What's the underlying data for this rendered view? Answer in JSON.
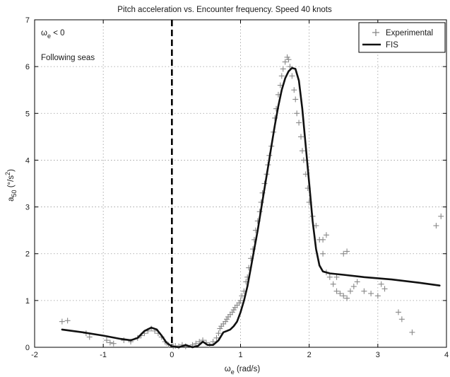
{
  "chart_data": {
    "type": "scatter",
    "title": "Pitch acceleration vs. Encounter frequency. Speed 40 knots",
    "xlabel": {
      "main": "ω",
      "sub": "e",
      "rest": " (rad/s)"
    },
    "ylabel": {
      "main": "a",
      "sub": "50",
      "rest": " (°/s",
      "sup": "2",
      "close": ")"
    },
    "xlim": [
      -2,
      4
    ],
    "ylim": [
      0,
      7
    ],
    "xticks": [
      "-2",
      "-1",
      "0",
      "1",
      "2",
      "3",
      "4"
    ],
    "yticks": [
      "0",
      "1",
      "2",
      "3",
      "4",
      "5",
      "6",
      "7"
    ],
    "grid": true,
    "legend_position": "top-right",
    "annotations": {
      "condition": {
        "main": "ω",
        "sub": "e",
        "rest": " < 0"
      },
      "label": "Following seas"
    },
    "vertical_line": {
      "x": 0,
      "style": "dashed"
    },
    "colors": {
      "experimental": "#888888",
      "fis": "#111111",
      "grid": "#9a9a9a"
    },
    "series": [
      {
        "name": "Experimental",
        "marker": "+",
        "points": [
          [
            -1.6,
            0.55
          ],
          [
            -1.52,
            0.57
          ],
          [
            -1.25,
            0.3
          ],
          [
            -1.2,
            0.22
          ],
          [
            -0.95,
            0.15
          ],
          [
            -0.9,
            0.1
          ],
          [
            -0.85,
            0.08
          ],
          [
            -0.7,
            0.15
          ],
          [
            -0.6,
            0.12
          ],
          [
            -0.5,
            0.2
          ],
          [
            -0.45,
            0.25
          ],
          [
            -0.4,
            0.3
          ],
          [
            -0.35,
            0.35
          ],
          [
            -0.3,
            0.4
          ],
          [
            -0.25,
            0.35
          ],
          [
            -0.2,
            0.3
          ],
          [
            -0.15,
            0.22
          ],
          [
            -0.1,
            0.12
          ],
          [
            -0.05,
            0.05
          ],
          [
            0.02,
            0.02
          ],
          [
            0.05,
            0.03
          ],
          [
            0.1,
            0.02
          ],
          [
            0.15,
            0.05
          ],
          [
            0.2,
            0.02
          ],
          [
            0.3,
            0.05
          ],
          [
            0.35,
            0.08
          ],
          [
            0.4,
            0.12
          ],
          [
            0.45,
            0.15
          ],
          [
            0.5,
            0.1
          ],
          [
            0.55,
            0.05
          ],
          [
            0.6,
            0.12
          ],
          [
            0.65,
            0.2
          ],
          [
            0.68,
            0.3
          ],
          [
            0.7,
            0.4
          ],
          [
            0.72,
            0.45
          ],
          [
            0.75,
            0.5
          ],
          [
            0.78,
            0.55
          ],
          [
            0.8,
            0.6
          ],
          [
            0.82,
            0.65
          ],
          [
            0.85,
            0.7
          ],
          [
            0.88,
            0.75
          ],
          [
            0.9,
            0.8
          ],
          [
            0.92,
            0.85
          ],
          [
            0.95,
            0.9
          ],
          [
            0.98,
            0.95
          ],
          [
            1.0,
            1.0
          ],
          [
            1.02,
            1.1
          ],
          [
            1.05,
            1.2
          ],
          [
            1.08,
            1.4
          ],
          [
            1.1,
            1.5
          ],
          [
            1.12,
            1.7
          ],
          [
            1.15,
            1.9
          ],
          [
            1.18,
            2.1
          ],
          [
            1.2,
            2.3
          ],
          [
            1.22,
            2.5
          ],
          [
            1.25,
            2.7
          ],
          [
            1.28,
            2.9
          ],
          [
            1.3,
            3.1
          ],
          [
            1.32,
            3.3
          ],
          [
            1.35,
            3.5
          ],
          [
            1.38,
            3.7
          ],
          [
            1.4,
            3.9
          ],
          [
            1.42,
            4.1
          ],
          [
            1.45,
            4.3
          ],
          [
            1.48,
            4.6
          ],
          [
            1.5,
            4.9
          ],
          [
            1.52,
            5.1
          ],
          [
            1.55,
            5.4
          ],
          [
            1.58,
            5.6
          ],
          [
            1.6,
            5.8
          ],
          [
            1.62,
            5.95
          ],
          [
            1.65,
            6.1
          ],
          [
            1.68,
            6.2
          ],
          [
            1.7,
            6.15
          ],
          [
            1.72,
            6.0
          ],
          [
            1.75,
            5.8
          ],
          [
            1.78,
            5.5
          ],
          [
            1.8,
            5.3
          ],
          [
            1.82,
            5.0
          ],
          [
            1.85,
            4.8
          ],
          [
            1.88,
            4.5
          ],
          [
            1.9,
            4.2
          ],
          [
            1.92,
            4.0
          ],
          [
            1.95,
            3.7
          ],
          [
            1.98,
            3.4
          ],
          [
            2.0,
            3.1
          ],
          [
            2.05,
            2.8
          ],
          [
            2.1,
            2.6
          ],
          [
            2.15,
            2.3
          ],
          [
            2.2,
            2.0
          ],
          [
            2.25,
            1.6
          ],
          [
            2.3,
            1.5
          ],
          [
            2.35,
            1.35
          ],
          [
            2.4,
            1.2
          ],
          [
            2.45,
            1.15
          ],
          [
            2.5,
            1.1
          ],
          [
            2.55,
            1.05
          ],
          [
            2.6,
            1.2
          ],
          [
            2.65,
            1.3
          ],
          [
            2.7,
            1.4
          ],
          [
            2.8,
            1.2
          ],
          [
            2.9,
            1.15
          ],
          [
            3.0,
            1.1
          ],
          [
            3.05,
            1.35
          ],
          [
            3.1,
            1.25
          ],
          [
            3.3,
            0.75
          ],
          [
            3.35,
            0.6
          ],
          [
            3.5,
            0.32
          ],
          [
            3.85,
            2.6
          ],
          [
            3.92,
            2.8
          ],
          [
            2.2,
            2.3
          ],
          [
            2.25,
            2.4
          ],
          [
            2.4,
            1.5
          ],
          [
            2.5,
            2.0
          ],
          [
            2.55,
            2.05
          ]
        ]
      },
      {
        "name": "FIS",
        "marker": "line",
        "points": [
          [
            -1.6,
            0.38
          ],
          [
            -1.3,
            0.32
          ],
          [
            -1.0,
            0.25
          ],
          [
            -0.75,
            0.18
          ],
          [
            -0.6,
            0.15
          ],
          [
            -0.5,
            0.2
          ],
          [
            -0.4,
            0.35
          ],
          [
            -0.3,
            0.42
          ],
          [
            -0.22,
            0.38
          ],
          [
            -0.15,
            0.25
          ],
          [
            -0.08,
            0.1
          ],
          [
            0.0,
            0.02
          ],
          [
            0.1,
            0.0
          ],
          [
            0.2,
            0.05
          ],
          [
            0.3,
            0.0
          ],
          [
            0.38,
            0.03
          ],
          [
            0.45,
            0.12
          ],
          [
            0.52,
            0.05
          ],
          [
            0.6,
            0.05
          ],
          [
            0.68,
            0.15
          ],
          [
            0.75,
            0.32
          ],
          [
            0.8,
            0.35
          ],
          [
            0.85,
            0.38
          ],
          [
            0.9,
            0.45
          ],
          [
            0.95,
            0.55
          ],
          [
            1.0,
            0.75
          ],
          [
            1.05,
            1.0
          ],
          [
            1.1,
            1.3
          ],
          [
            1.15,
            1.7
          ],
          [
            1.2,
            2.1
          ],
          [
            1.25,
            2.5
          ],
          [
            1.3,
            2.95
          ],
          [
            1.35,
            3.4
          ],
          [
            1.4,
            3.85
          ],
          [
            1.45,
            4.3
          ],
          [
            1.5,
            4.75
          ],
          [
            1.55,
            5.15
          ],
          [
            1.6,
            5.5
          ],
          [
            1.65,
            5.75
          ],
          [
            1.7,
            5.9
          ],
          [
            1.75,
            5.97
          ],
          [
            1.8,
            5.95
          ],
          [
            1.85,
            5.7
          ],
          [
            1.9,
            5.1
          ],
          [
            1.95,
            4.3
          ],
          [
            2.0,
            3.5
          ],
          [
            2.05,
            2.7
          ],
          [
            2.1,
            2.1
          ],
          [
            2.15,
            1.75
          ],
          [
            2.2,
            1.62
          ],
          [
            2.3,
            1.58
          ],
          [
            2.5,
            1.55
          ],
          [
            2.8,
            1.5
          ],
          [
            3.2,
            1.45
          ],
          [
            3.6,
            1.38
          ],
          [
            3.9,
            1.32
          ]
        ]
      }
    ]
  }
}
